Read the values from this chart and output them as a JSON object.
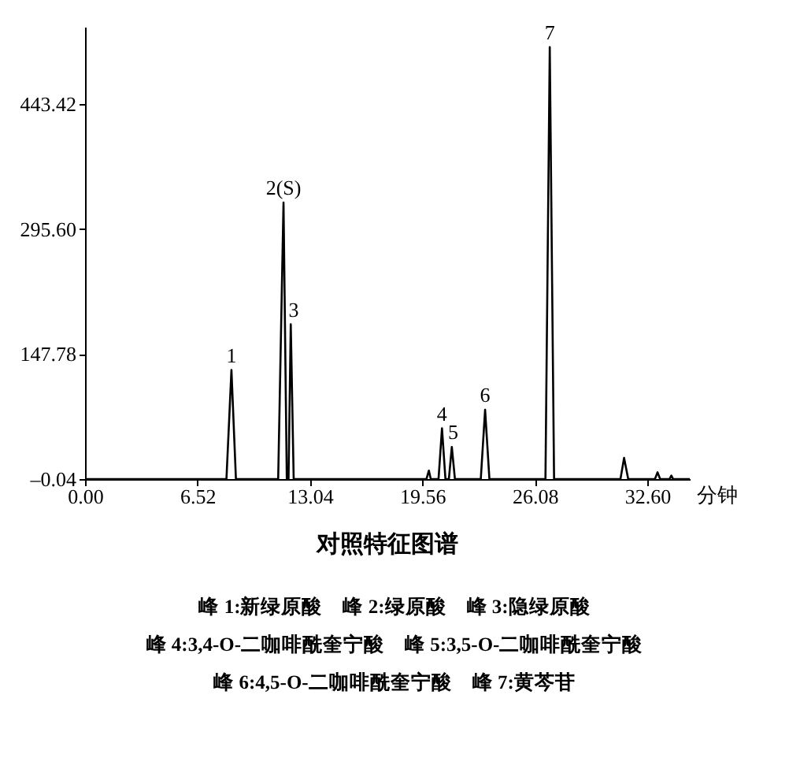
{
  "chart_data": {
    "type": "line",
    "title": "对照特征图谱",
    "xlabel": "分钟",
    "x": [
      0,
      8.2,
      8.49,
      8.75,
      11.2,
      11.51,
      11.7,
      11.8,
      11.93,
      12.1,
      19.8,
      19.94,
      20.05,
      20.5,
      20.7,
      20.9,
      21.1,
      21.27,
      21.45,
      22.95,
      23.2,
      23.45,
      26.7,
      26.95,
      27.2,
      31.05,
      31.26,
      31.5,
      33.05,
      33.2,
      33.35,
      33.9,
      34.0,
      34.1,
      35.07
    ],
    "series": [
      {
        "color": "#000000",
        "values": [
          0,
          0,
          129,
          0,
          0,
          327,
          0,
          0,
          183,
          0,
          0,
          10,
          0,
          0,
          60,
          0,
          0,
          38,
          0,
          0,
          82,
          0,
          0,
          511,
          0,
          0,
          25,
          0,
          0,
          8,
          0,
          0,
          4,
          0,
          0
        ]
      }
    ],
    "xlim": [
      0,
      35.07
    ],
    "ylim": [
      -0.04,
      535
    ],
    "xticks": [
      {
        "value": 0,
        "label": "0.00"
      },
      {
        "value": 6.52,
        "label": "6.52"
      },
      {
        "value": 13.04,
        "label": "13.04"
      },
      {
        "value": 19.56,
        "label": "19.56"
      },
      {
        "value": 26.08,
        "label": "26.08"
      },
      {
        "value": 32.6,
        "label": "32.60"
      }
    ],
    "yticks": [
      {
        "value": -0.04,
        "label": "–0.04"
      },
      {
        "value": 147.78,
        "label": "147.78"
      },
      {
        "value": 295.6,
        "label": "295.60"
      },
      {
        "value": 443.42,
        "label": "443.42"
      }
    ],
    "grid": false,
    "legend": false,
    "marker": "none",
    "line_style": "solid",
    "annotations": [
      {
        "text": "1",
        "x": 8.49,
        "y": 129
      },
      {
        "text": "2(S)",
        "x": 11.51,
        "y": 327
      },
      {
        "text": "3",
        "x": 12.1,
        "y": 183
      },
      {
        "text": "4",
        "x": 20.7,
        "y": 60
      },
      {
        "text": "5",
        "x": 21.35,
        "y": 38
      },
      {
        "text": "6",
        "x": 23.2,
        "y": 82
      },
      {
        "text": "7",
        "x": 26.95,
        "y": 511
      },
      "峰 1:新绿原酸　峰 2:绿原酸　峰 3:隐绿原酸",
      "峰 4:3,4-O-二咖啡酰奎宁酸　峰 5:3,5-O-二咖啡酰奎宁酸",
      "峰 6:4,5-O-二咖啡酰奎宁酸　峰 7:黄芩苷"
    ]
  }
}
